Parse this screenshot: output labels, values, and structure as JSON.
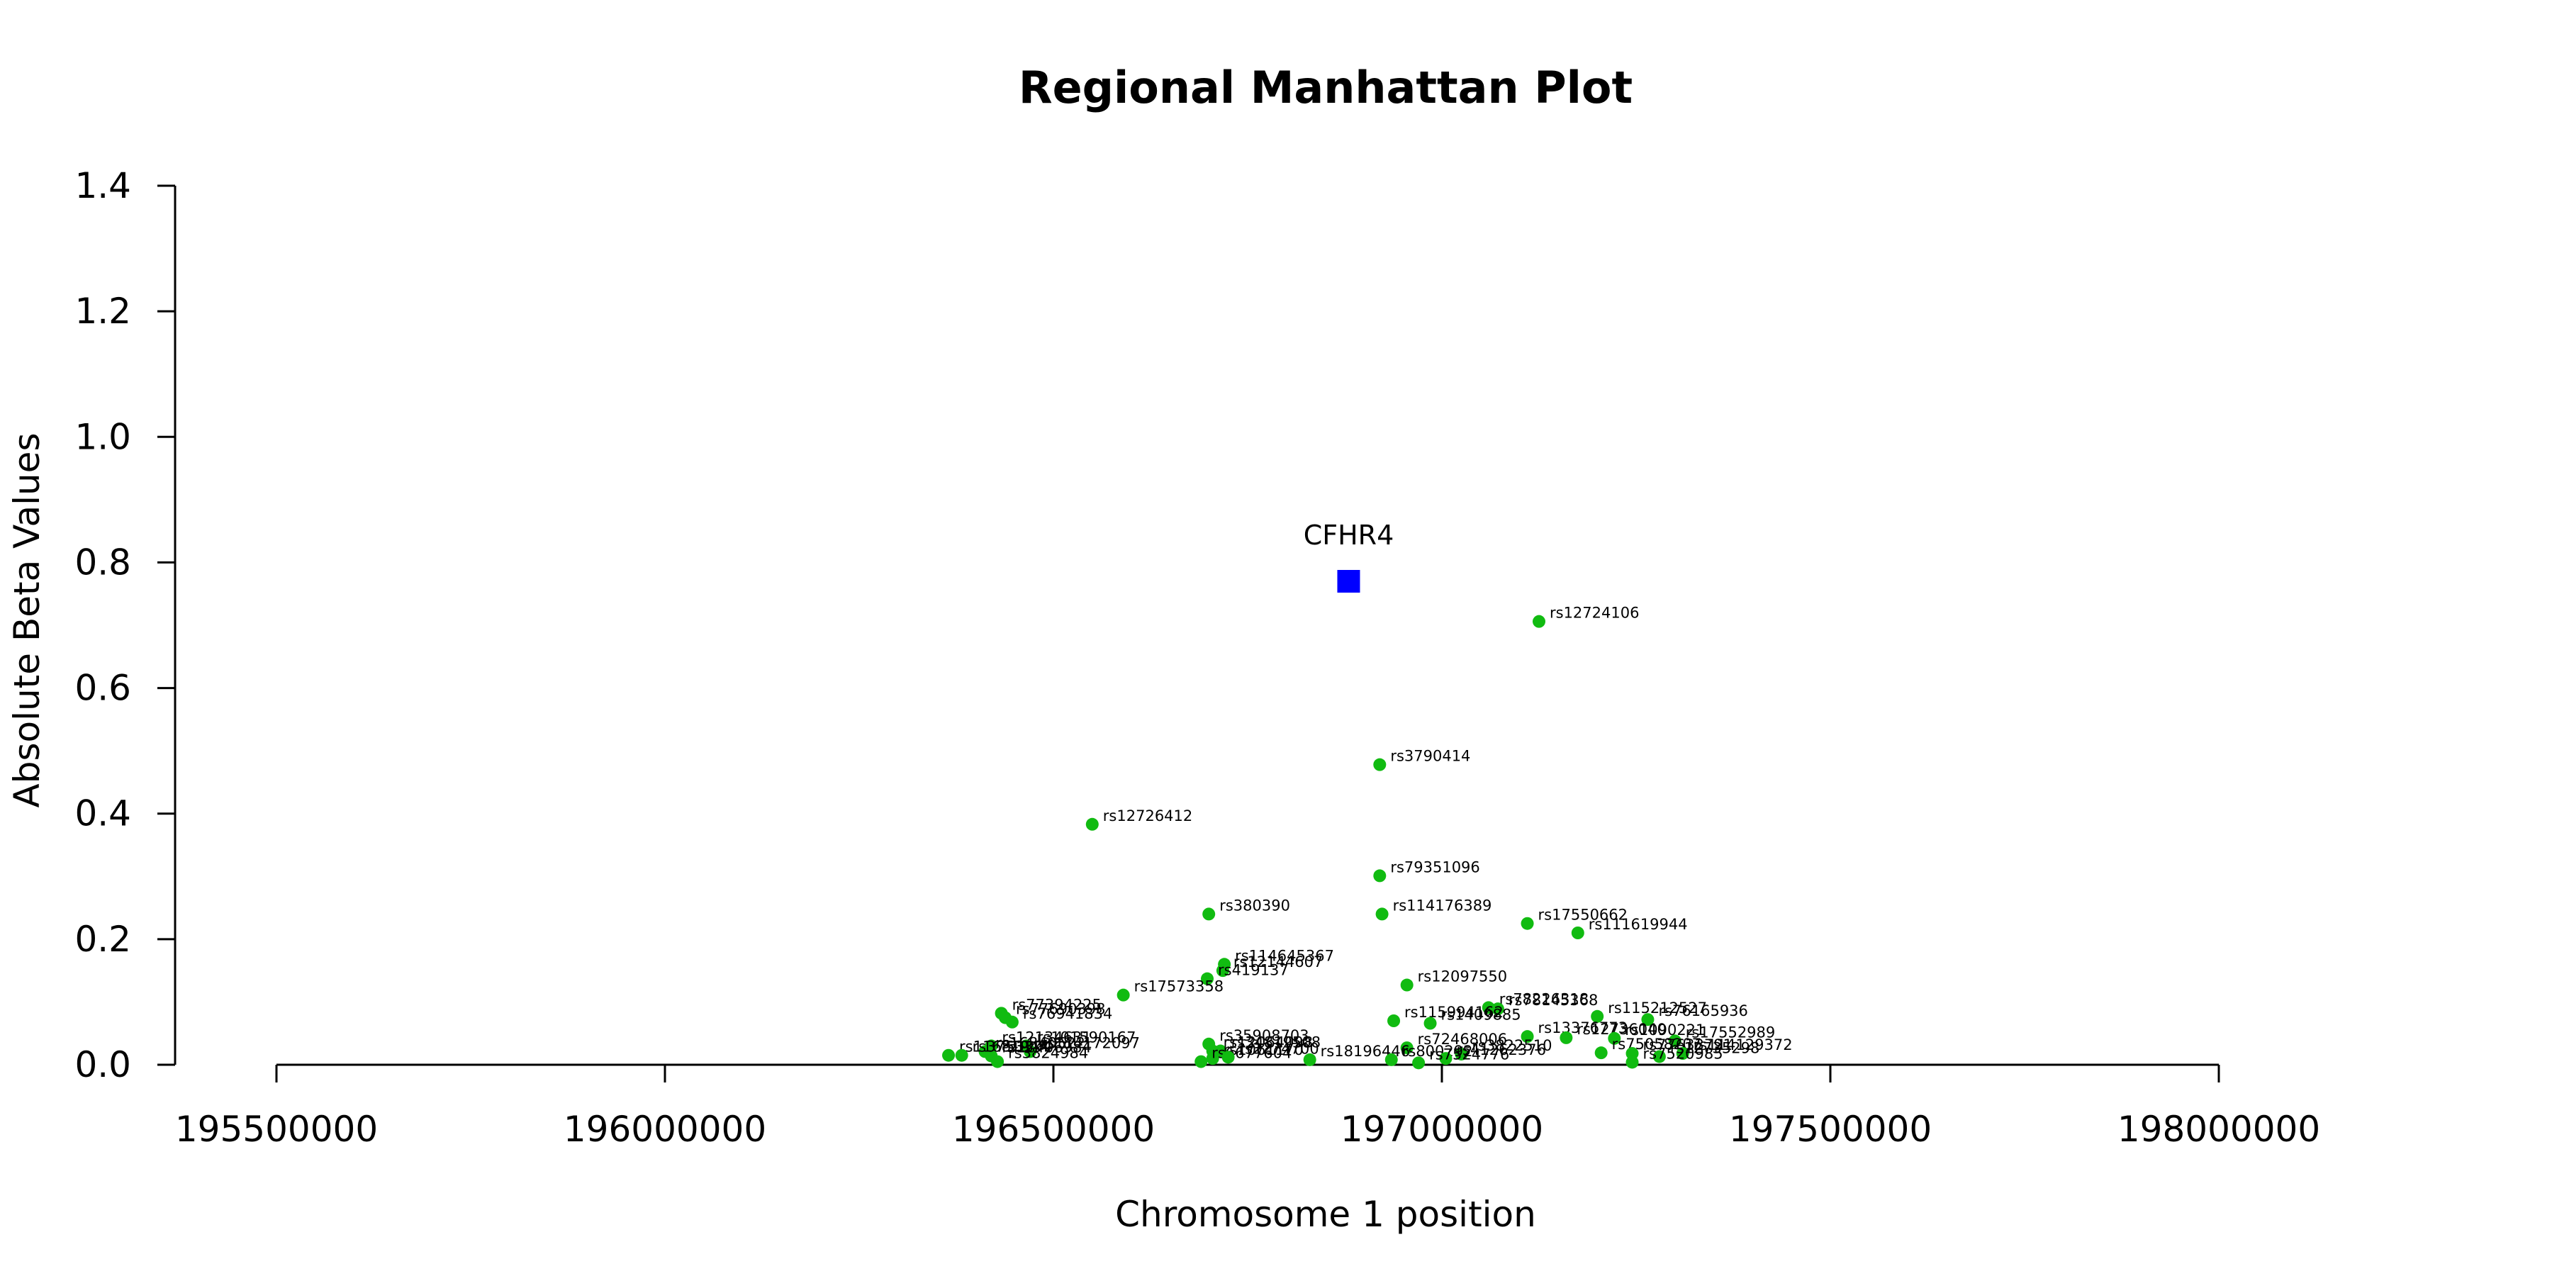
{
  "chart_data": {
    "type": "scatter",
    "title": "Regional Manhattan Plot",
    "xlabel": "Chromosome 1 position",
    "ylabel": "Absolute Beta Values",
    "xlim": [
      195500000,
      198000000
    ],
    "ylim": [
      0,
      1.4
    ],
    "x_ticks": [
      195500000,
      196000000,
      196500000,
      197000000,
      197500000,
      198000000
    ],
    "y_ticks": [
      0.0,
      0.2,
      0.4,
      0.6,
      0.8,
      1.0,
      1.2,
      1.4
    ],
    "x_tick_labels": [
      "195500000",
      "196000000",
      "196500000",
      "197000000",
      "197500000",
      "198000000"
    ],
    "y_tick_labels": [
      "0.0",
      "0.2",
      "0.4",
      "0.6",
      "0.8",
      "1.0",
      "1.2",
      "1.4"
    ],
    "grid": false,
    "colors": {
      "gene": "#0000ff",
      "snp": "#11bb11"
    },
    "gene": {
      "name": "CFHR4",
      "x": 196880000,
      "y": 0.77
    },
    "series": [
      {
        "points": [
          {
            "label": "rs12724106",
            "x": 197125000,
            "y": 0.706
          },
          {
            "label": "rs3790414",
            "x": 196920000,
            "y": 0.478
          },
          {
            "label": "rs12726412",
            "x": 196550000,
            "y": 0.383
          },
          {
            "label": "rs79351096",
            "x": 196920000,
            "y": 0.301
          },
          {
            "label": "rs380390",
            "x": 196700000,
            "y": 0.24
          },
          {
            "label": "rs114176389",
            "x": 196923000,
            "y": 0.24
          },
          {
            "label": "rs17550662",
            "x": 197110000,
            "y": 0.225
          },
          {
            "label": "rs111619944",
            "x": 197175000,
            "y": 0.21
          },
          {
            "label": "rs114645367",
            "x": 196720000,
            "y": 0.16
          },
          {
            "label": "rs12144607",
            "x": 196718000,
            "y": 0.15
          },
          {
            "label": "rs419137",
            "x": 196698000,
            "y": 0.137
          },
          {
            "label": "rs12097550",
            "x": 196955000,
            "y": 0.127
          },
          {
            "label": "rs17573358",
            "x": 196590000,
            "y": 0.111
          },
          {
            "label": "rs78226318",
            "x": 197060000,
            "y": 0.091
          },
          {
            "label": "rs78145368",
            "x": 197072000,
            "y": 0.089
          },
          {
            "label": "rs77394225",
            "x": 196433000,
            "y": 0.082
          },
          {
            "label": "rs115212527",
            "x": 197200000,
            "y": 0.077
          },
          {
            "label": "rs76165936",
            "x": 197265000,
            "y": 0.072
          },
          {
            "label": "rs77690398",
            "x": 196438000,
            "y": 0.075
          },
          {
            "label": "rs76941834",
            "x": 196447000,
            "y": 0.068
          },
          {
            "label": "rs115994162",
            "x": 196938000,
            "y": 0.07
          },
          {
            "label": "rs1409885",
            "x": 196985000,
            "y": 0.066
          },
          {
            "label": "rs13376773",
            "x": 197110000,
            "y": 0.045
          },
          {
            "label": "rs12736040",
            "x": 197160000,
            "y": 0.043
          },
          {
            "label": "rs1090221",
            "x": 197222000,
            "y": 0.042
          },
          {
            "label": "rs17552989",
            "x": 197300000,
            "y": 0.038
          },
          {
            "label": "rs72468006",
            "x": 196955000,
            "y": 0.027
          },
          {
            "label": "rs12134631",
            "x": 196420000,
            "y": 0.03
          },
          {
            "label": "rs101590167",
            "x": 196465000,
            "y": 0.03
          },
          {
            "label": "rs35908703",
            "x": 196700000,
            "y": 0.033
          },
          {
            "label": "rs16840522",
            "x": 196412000,
            "y": 0.021
          },
          {
            "label": "rs114172097",
            "x": 196470000,
            "y": 0.021
          },
          {
            "label": "rs12064098",
            "x": 196705000,
            "y": 0.022
          },
          {
            "label": "rs34819508",
            "x": 196715000,
            "y": 0.022
          },
          {
            "label": "rs12406984",
            "x": 196420000,
            "y": 0.014
          },
          {
            "label": "rs3822510",
            "x": 197025000,
            "y": 0.017
          },
          {
            "label": "rs75058207",
            "x": 197205000,
            "y": 0.019
          },
          {
            "label": "rs77633791",
            "x": 197245000,
            "y": 0.018
          },
          {
            "label": "rs114129372",
            "x": 197310000,
            "y": 0.018
          },
          {
            "label": "rs11681944",
            "x": 196365000,
            "y": 0.015
          },
          {
            "label": "rs3753394",
            "x": 196382000,
            "y": 0.015
          },
          {
            "label": "rs1061170",
            "x": 196705000,
            "y": 0.01
          },
          {
            "label": "rs18196446",
            "x": 196830000,
            "y": 0.008
          },
          {
            "label": "rs800292",
            "x": 196935000,
            "y": 0.008
          },
          {
            "label": "rs41262376",
            "x": 197005000,
            "y": 0.01
          },
          {
            "label": "rs12735298",
            "x": 197280000,
            "y": 0.013
          },
          {
            "label": "rs3824984",
            "x": 196428000,
            "y": 0.005
          },
          {
            "label": "rs6677604",
            "x": 196690000,
            "y": 0.005
          },
          {
            "label": "rs7524776",
            "x": 196970000,
            "y": 0.003
          },
          {
            "label": "rs7520985",
            "x": 197245000,
            "y": 0.004
          },
          {
            "label": "rs2274700",
            "x": 196725000,
            "y": 0.012
          }
        ]
      }
    ]
  }
}
